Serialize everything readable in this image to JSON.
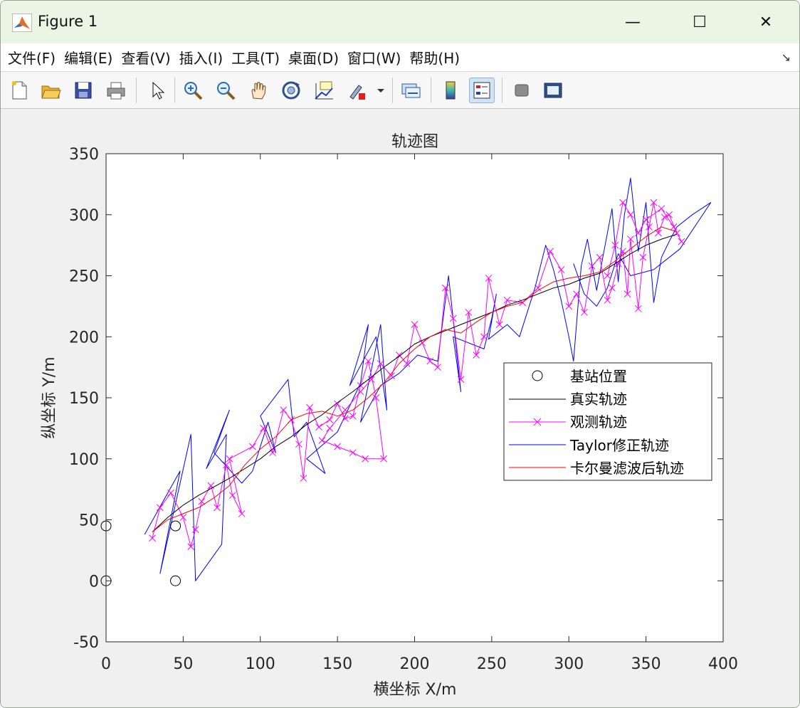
{
  "window": {
    "title": "Figure 1",
    "minimize": "—",
    "maximize": "☐",
    "close": "✕"
  },
  "menu": [
    "文件(F)",
    "编辑(E)",
    "查看(V)",
    "插入(I)",
    "工具(T)",
    "桌面(D)",
    "窗口(W)",
    "帮助(H)"
  ],
  "menu_overflow": "↘",
  "toolbar": [
    "new-file-icon",
    "open-folder-icon",
    "save-icon",
    "print-icon",
    "pointer-icon",
    "zoom-in-icon",
    "zoom-out-icon",
    "pan-hand-icon",
    "rotate-3d-icon",
    "data-cursor-icon",
    "brush-icon",
    "link-plot-icon",
    "colorbar-icon",
    "legend-icon",
    "hide-plot-tools-icon",
    "show-plot-tools-icon"
  ],
  "colors": {
    "truth": "#000000",
    "observed": "#ff00ff",
    "taylor": "#0000ff",
    "kalman": "#ff0000",
    "stations": "#000000"
  },
  "chart_data": {
    "type": "line",
    "title": "轨迹图",
    "xlabel": "横坐标 X/m",
    "ylabel": "纵坐标 Y/m",
    "xlim": [
      0,
      400
    ],
    "ylim": [
      -50,
      350
    ],
    "xticks": [
      0,
      50,
      100,
      150,
      200,
      250,
      300,
      350,
      400
    ],
    "yticks": [
      -50,
      0,
      50,
      100,
      150,
      200,
      250,
      300,
      350
    ],
    "grid": false,
    "legend_position": "right",
    "series": [
      {
        "name": "基站位置",
        "marker": "o",
        "line": "none",
        "points": [
          [
            0,
            45
          ],
          [
            0,
            0
          ],
          [
            45,
            45
          ],
          [
            45,
            0
          ]
        ]
      },
      {
        "name": "真实轨迹",
        "marker": "none",
        "line": "solid",
        "points": [
          [
            30,
            40
          ],
          [
            40,
            52
          ],
          [
            50,
            62
          ],
          [
            60,
            70
          ],
          [
            70,
            77
          ],
          [
            80,
            84
          ],
          [
            90,
            92
          ],
          [
            100,
            100
          ],
          [
            110,
            110
          ],
          [
            120,
            118
          ],
          [
            130,
            128
          ],
          [
            140,
            136
          ],
          [
            150,
            146
          ],
          [
            160,
            155
          ],
          [
            170,
            165
          ],
          [
            180,
            175
          ],
          [
            190,
            184
          ],
          [
            200,
            194
          ],
          [
            210,
            200
          ],
          [
            220,
            205
          ],
          [
            230,
            210
          ],
          [
            240,
            215
          ],
          [
            250,
            220
          ],
          [
            260,
            226
          ],
          [
            270,
            230
          ],
          [
            280,
            235
          ],
          [
            290,
            240
          ],
          [
            300,
            243
          ],
          [
            310,
            248
          ],
          [
            320,
            252
          ],
          [
            330,
            260
          ],
          [
            340,
            268
          ],
          [
            350,
            275
          ],
          [
            360,
            280
          ],
          [
            370,
            284
          ]
        ]
      },
      {
        "name": "观测轨迹",
        "marker": "x",
        "line": "solid",
        "points": [
          [
            30,
            35
          ],
          [
            35,
            60
          ],
          [
            42,
            72
          ],
          [
            50,
            52
          ],
          [
            55,
            28
          ],
          [
            58,
            42
          ],
          [
            62,
            65
          ],
          [
            68,
            78
          ],
          [
            72,
            60
          ],
          [
            78,
            95
          ],
          [
            82,
            70
          ],
          [
            88,
            55
          ],
          [
            80,
            100
          ],
          [
            95,
            110
          ],
          [
            102,
            125
          ],
          [
            108,
            105
          ],
          [
            115,
            140
          ],
          [
            120,
            132
          ],
          [
            125,
            112
          ],
          [
            128,
            84
          ],
          [
            132,
            142
          ],
          [
            138,
            126
          ],
          [
            145,
            132
          ],
          [
            150,
            145
          ],
          [
            155,
            133
          ],
          [
            160,
            135
          ],
          [
            165,
            160
          ],
          [
            170,
            180
          ],
          [
            175,
            150
          ],
          [
            180,
            100
          ],
          [
            168,
            100
          ],
          [
            160,
            105
          ],
          [
            150,
            110
          ],
          [
            140,
            115
          ],
          [
            145,
            125
          ],
          [
            155,
            140
          ],
          [
            165,
            155
          ],
          [
            172,
            165
          ],
          [
            178,
            178
          ],
          [
            185,
            168
          ],
          [
            190,
            185
          ],
          [
            195,
            178
          ],
          [
            200,
            210
          ],
          [
            205,
            195
          ],
          [
            210,
            180
          ],
          [
            215,
            175
          ],
          [
            220,
            240
          ],
          [
            225,
            215
          ],
          [
            230,
            165
          ],
          [
            235,
            220
          ],
          [
            240,
            185
          ],
          [
            245,
            200
          ],
          [
            248,
            248
          ],
          [
            255,
            210
          ],
          [
            260,
            230
          ],
          [
            270,
            228
          ],
          [
            280,
            240
          ],
          [
            288,
            270
          ],
          [
            295,
            255
          ],
          [
            300,
            225
          ],
          [
            305,
            235
          ],
          [
            310,
            220
          ],
          [
            315,
            258
          ],
          [
            320,
            265
          ],
          [
            325,
            230
          ],
          [
            328,
            240
          ],
          [
            332,
            260
          ],
          [
            335,
            270
          ],
          [
            338,
            235
          ],
          [
            340,
            280
          ],
          [
            345,
            223
          ],
          [
            348,
            265
          ],
          [
            352,
            290
          ],
          [
            355,
            310
          ],
          [
            358,
            285
          ],
          [
            362,
            298
          ],
          [
            365,
            300
          ],
          [
            370,
            285
          ],
          [
            373,
            278
          ],
          [
            368,
            290
          ],
          [
            360,
            305
          ],
          [
            350,
            296
          ],
          [
            345,
            285
          ],
          [
            340,
            300
          ],
          [
            335,
            310
          ],
          [
            330,
            275
          ],
          [
            325,
            250
          ]
        ]
      },
      {
        "name": "Taylor修正轨迹",
        "marker": "none",
        "line": "solid",
        "points": [
          [
            25,
            38
          ],
          [
            48,
            90
          ],
          [
            35,
            6
          ],
          [
            55,
            120
          ],
          [
            58,
            0
          ],
          [
            75,
            30
          ],
          [
            78,
            120
          ],
          [
            65,
            92
          ],
          [
            80,
            140
          ],
          [
            70,
            105
          ],
          [
            88,
            80
          ],
          [
            95,
            90
          ],
          [
            105,
            130
          ],
          [
            110,
            105
          ],
          [
            100,
            135
          ],
          [
            118,
            165
          ],
          [
            122,
            118
          ],
          [
            130,
            130
          ],
          [
            142,
            88
          ],
          [
            130,
            100
          ],
          [
            150,
            122
          ],
          [
            165,
            162
          ],
          [
            170,
            210
          ],
          [
            158,
            160
          ],
          [
            175,
            200
          ],
          [
            182,
            140
          ],
          [
            178,
            210
          ],
          [
            165,
            130
          ],
          [
            178,
            160
          ],
          [
            190,
            170
          ],
          [
            202,
            185
          ],
          [
            215,
            180
          ],
          [
            222,
            250
          ],
          [
            230,
            155
          ],
          [
            225,
            200
          ],
          [
            245,
            190
          ],
          [
            250,
            215
          ],
          [
            253,
            235
          ],
          [
            248,
            198
          ],
          [
            260,
            210
          ],
          [
            268,
            200
          ],
          [
            278,
            240
          ],
          [
            285,
            275
          ],
          [
            290,
            255
          ],
          [
            295,
            230
          ],
          [
            300,
            200
          ],
          [
            303,
            180
          ],
          [
            308,
            258
          ],
          [
            312,
            280
          ],
          [
            318,
            238
          ],
          [
            322,
            265
          ],
          [
            328,
            305
          ],
          [
            332,
            245
          ],
          [
            336,
            300
          ],
          [
            340,
            330
          ],
          [
            345,
            270
          ],
          [
            350,
            310
          ],
          [
            355,
            228
          ],
          [
            360,
            265
          ],
          [
            365,
            278
          ],
          [
            370,
            290
          ],
          [
            380,
            300
          ],
          [
            392,
            310
          ],
          [
            372,
            272
          ],
          [
            355,
            255
          ],
          [
            340,
            250
          ],
          [
            332,
            268
          ],
          [
            325,
            240
          ],
          [
            318,
            225
          ],
          [
            310,
            235
          ],
          [
            303,
            260
          ]
        ]
      },
      {
        "name": "卡尔曼滤波后轨迹",
        "marker": "none",
        "line": "solid",
        "points": [
          [
            30,
            40
          ],
          [
            40,
            50
          ],
          [
            50,
            55
          ],
          [
            60,
            60
          ],
          [
            70,
            68
          ],
          [
            80,
            78
          ],
          [
            90,
            95
          ],
          [
            100,
            108
          ],
          [
            110,
            118
          ],
          [
            120,
            132
          ],
          [
            130,
            137
          ],
          [
            140,
            139
          ],
          [
            150,
            135
          ],
          [
            160,
            140
          ],
          [
            170,
            150
          ],
          [
            180,
            162
          ],
          [
            190,
            178
          ],
          [
            200,
            190
          ],
          [
            210,
            200
          ],
          [
            220,
            206
          ],
          [
            230,
            203
          ],
          [
            240,
            212
          ],
          [
            250,
            220
          ],
          [
            260,
            225
          ],
          [
            270,
            228
          ],
          [
            280,
            238
          ],
          [
            290,
            245
          ],
          [
            300,
            248
          ],
          [
            310,
            250
          ],
          [
            320,
            253
          ],
          [
            330,
            262
          ],
          [
            340,
            272
          ],
          [
            350,
            282
          ],
          [
            360,
            290
          ],
          [
            370,
            286
          ]
        ]
      }
    ]
  }
}
